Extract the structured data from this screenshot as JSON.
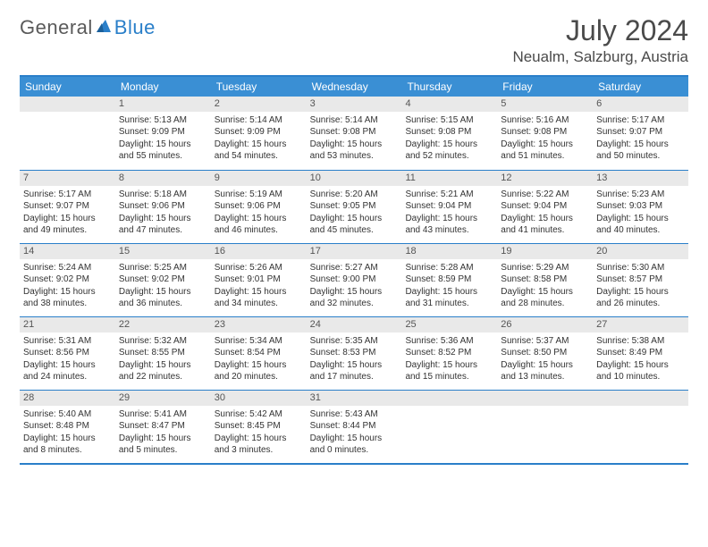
{
  "brand": {
    "part1": "General",
    "part2": "Blue"
  },
  "title": "July 2024",
  "location": "Neualm, Salzburg, Austria",
  "colors": {
    "header_bg": "#3a8fd4",
    "border": "#2a7fc9",
    "daynum_bg": "#e9e9e9",
    "text": "#333333"
  },
  "days_of_week": [
    "Sunday",
    "Monday",
    "Tuesday",
    "Wednesday",
    "Thursday",
    "Friday",
    "Saturday"
  ],
  "weeks": [
    [
      {
        "n": "",
        "sunrise": "",
        "sunset": "",
        "daylight": ""
      },
      {
        "n": "1",
        "sunrise": "Sunrise: 5:13 AM",
        "sunset": "Sunset: 9:09 PM",
        "daylight": "Daylight: 15 hours and 55 minutes."
      },
      {
        "n": "2",
        "sunrise": "Sunrise: 5:14 AM",
        "sunset": "Sunset: 9:09 PM",
        "daylight": "Daylight: 15 hours and 54 minutes."
      },
      {
        "n": "3",
        "sunrise": "Sunrise: 5:14 AM",
        "sunset": "Sunset: 9:08 PM",
        "daylight": "Daylight: 15 hours and 53 minutes."
      },
      {
        "n": "4",
        "sunrise": "Sunrise: 5:15 AM",
        "sunset": "Sunset: 9:08 PM",
        "daylight": "Daylight: 15 hours and 52 minutes."
      },
      {
        "n": "5",
        "sunrise": "Sunrise: 5:16 AM",
        "sunset": "Sunset: 9:08 PM",
        "daylight": "Daylight: 15 hours and 51 minutes."
      },
      {
        "n": "6",
        "sunrise": "Sunrise: 5:17 AM",
        "sunset": "Sunset: 9:07 PM",
        "daylight": "Daylight: 15 hours and 50 minutes."
      }
    ],
    [
      {
        "n": "7",
        "sunrise": "Sunrise: 5:17 AM",
        "sunset": "Sunset: 9:07 PM",
        "daylight": "Daylight: 15 hours and 49 minutes."
      },
      {
        "n": "8",
        "sunrise": "Sunrise: 5:18 AM",
        "sunset": "Sunset: 9:06 PM",
        "daylight": "Daylight: 15 hours and 47 minutes."
      },
      {
        "n": "9",
        "sunrise": "Sunrise: 5:19 AM",
        "sunset": "Sunset: 9:06 PM",
        "daylight": "Daylight: 15 hours and 46 minutes."
      },
      {
        "n": "10",
        "sunrise": "Sunrise: 5:20 AM",
        "sunset": "Sunset: 9:05 PM",
        "daylight": "Daylight: 15 hours and 45 minutes."
      },
      {
        "n": "11",
        "sunrise": "Sunrise: 5:21 AM",
        "sunset": "Sunset: 9:04 PM",
        "daylight": "Daylight: 15 hours and 43 minutes."
      },
      {
        "n": "12",
        "sunrise": "Sunrise: 5:22 AM",
        "sunset": "Sunset: 9:04 PM",
        "daylight": "Daylight: 15 hours and 41 minutes."
      },
      {
        "n": "13",
        "sunrise": "Sunrise: 5:23 AM",
        "sunset": "Sunset: 9:03 PM",
        "daylight": "Daylight: 15 hours and 40 minutes."
      }
    ],
    [
      {
        "n": "14",
        "sunrise": "Sunrise: 5:24 AM",
        "sunset": "Sunset: 9:02 PM",
        "daylight": "Daylight: 15 hours and 38 minutes."
      },
      {
        "n": "15",
        "sunrise": "Sunrise: 5:25 AM",
        "sunset": "Sunset: 9:02 PM",
        "daylight": "Daylight: 15 hours and 36 minutes."
      },
      {
        "n": "16",
        "sunrise": "Sunrise: 5:26 AM",
        "sunset": "Sunset: 9:01 PM",
        "daylight": "Daylight: 15 hours and 34 minutes."
      },
      {
        "n": "17",
        "sunrise": "Sunrise: 5:27 AM",
        "sunset": "Sunset: 9:00 PM",
        "daylight": "Daylight: 15 hours and 32 minutes."
      },
      {
        "n": "18",
        "sunrise": "Sunrise: 5:28 AM",
        "sunset": "Sunset: 8:59 PM",
        "daylight": "Daylight: 15 hours and 31 minutes."
      },
      {
        "n": "19",
        "sunrise": "Sunrise: 5:29 AM",
        "sunset": "Sunset: 8:58 PM",
        "daylight": "Daylight: 15 hours and 28 minutes."
      },
      {
        "n": "20",
        "sunrise": "Sunrise: 5:30 AM",
        "sunset": "Sunset: 8:57 PM",
        "daylight": "Daylight: 15 hours and 26 minutes."
      }
    ],
    [
      {
        "n": "21",
        "sunrise": "Sunrise: 5:31 AM",
        "sunset": "Sunset: 8:56 PM",
        "daylight": "Daylight: 15 hours and 24 minutes."
      },
      {
        "n": "22",
        "sunrise": "Sunrise: 5:32 AM",
        "sunset": "Sunset: 8:55 PM",
        "daylight": "Daylight: 15 hours and 22 minutes."
      },
      {
        "n": "23",
        "sunrise": "Sunrise: 5:34 AM",
        "sunset": "Sunset: 8:54 PM",
        "daylight": "Daylight: 15 hours and 20 minutes."
      },
      {
        "n": "24",
        "sunrise": "Sunrise: 5:35 AM",
        "sunset": "Sunset: 8:53 PM",
        "daylight": "Daylight: 15 hours and 17 minutes."
      },
      {
        "n": "25",
        "sunrise": "Sunrise: 5:36 AM",
        "sunset": "Sunset: 8:52 PM",
        "daylight": "Daylight: 15 hours and 15 minutes."
      },
      {
        "n": "26",
        "sunrise": "Sunrise: 5:37 AM",
        "sunset": "Sunset: 8:50 PM",
        "daylight": "Daylight: 15 hours and 13 minutes."
      },
      {
        "n": "27",
        "sunrise": "Sunrise: 5:38 AM",
        "sunset": "Sunset: 8:49 PM",
        "daylight": "Daylight: 15 hours and 10 minutes."
      }
    ],
    [
      {
        "n": "28",
        "sunrise": "Sunrise: 5:40 AM",
        "sunset": "Sunset: 8:48 PM",
        "daylight": "Daylight: 15 hours and 8 minutes."
      },
      {
        "n": "29",
        "sunrise": "Sunrise: 5:41 AM",
        "sunset": "Sunset: 8:47 PM",
        "daylight": "Daylight: 15 hours and 5 minutes."
      },
      {
        "n": "30",
        "sunrise": "Sunrise: 5:42 AM",
        "sunset": "Sunset: 8:45 PM",
        "daylight": "Daylight: 15 hours and 3 minutes."
      },
      {
        "n": "31",
        "sunrise": "Sunrise: 5:43 AM",
        "sunset": "Sunset: 8:44 PM",
        "daylight": "Daylight: 15 hours and 0 minutes."
      },
      {
        "n": "",
        "sunrise": "",
        "sunset": "",
        "daylight": ""
      },
      {
        "n": "",
        "sunrise": "",
        "sunset": "",
        "daylight": ""
      },
      {
        "n": "",
        "sunrise": "",
        "sunset": "",
        "daylight": ""
      }
    ]
  ]
}
